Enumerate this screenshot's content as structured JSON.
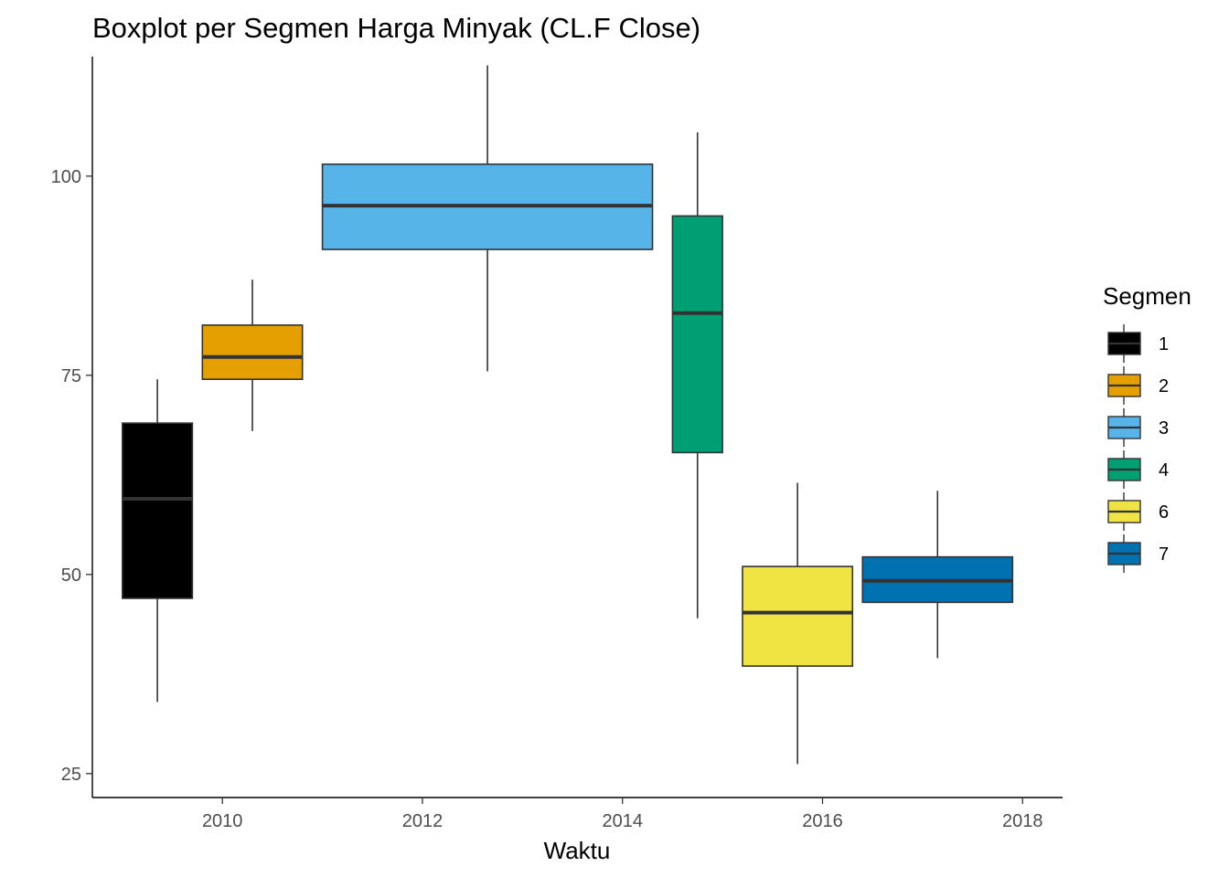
{
  "chart_data": {
    "type": "boxplot",
    "title": "Boxplot per Segmen Harga Minyak (CL.F Close)",
    "xlabel": "Waktu",
    "ylabel": "",
    "xlim": [
      2008.7,
      2018.4
    ],
    "ylim": [
      22,
      115
    ],
    "x_ticks": [
      2010,
      2012,
      2014,
      2016,
      2018
    ],
    "y_ticks": [
      25,
      50,
      75,
      100
    ],
    "grid": false,
    "legend": {
      "title": "Segmen",
      "position": "right"
    },
    "series": [
      {
        "name": "1",
        "color": "#000000",
        "x_start": 2009.0,
        "x_end": 2009.7,
        "whisker_low": 34.0,
        "q1": 47.0,
        "median": 59.5,
        "q3": 69.0,
        "whisker_high": 74.5
      },
      {
        "name": "2",
        "color": "#E69F00",
        "x_start": 2009.8,
        "x_end": 2010.8,
        "whisker_low": 68.0,
        "q1": 74.5,
        "median": 77.3,
        "q3": 81.3,
        "whisker_high": 87.0
      },
      {
        "name": "3",
        "color": "#56B4E9",
        "x_start": 2011.0,
        "x_end": 2014.3,
        "whisker_low": 75.5,
        "q1": 90.8,
        "median": 96.3,
        "q3": 101.5,
        "whisker_high": 113.9
      },
      {
        "name": "4",
        "color": "#009E73",
        "x_start": 2014.5,
        "x_end": 2015.0,
        "whisker_low": 44.5,
        "q1": 65.3,
        "median": 82.8,
        "q3": 95.0,
        "whisker_high": 105.5
      },
      {
        "name": "6",
        "color": "#F0E442",
        "x_start": 2015.2,
        "x_end": 2016.3,
        "whisker_low": 26.2,
        "q1": 38.5,
        "median": 45.2,
        "q3": 51.0,
        "whisker_high": 61.5
      },
      {
        "name": "7",
        "color": "#0072B2",
        "x_start": 2016.4,
        "x_end": 2017.9,
        "whisker_low": 39.5,
        "q1": 46.5,
        "median": 49.2,
        "q3": 52.2,
        "whisker_high": 60.5
      }
    ]
  }
}
